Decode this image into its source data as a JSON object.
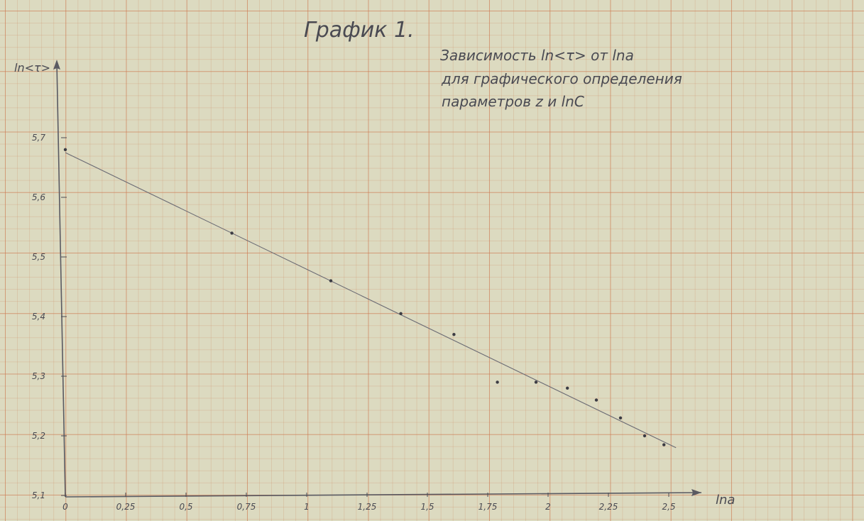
{
  "chart_data": {
    "type": "scatter",
    "title": "График 1.",
    "subtitle_lines": [
      "Зависимость ln<τ> от lna",
      "для графического определения",
      "параметров z и lnC"
    ],
    "xlabel": "lna",
    "ylabel": "ln<τ>",
    "xlim": [
      0,
      2.6
    ],
    "ylim": [
      5.1,
      5.8
    ],
    "x_ticks": [
      "0",
      "0,25",
      "0,5",
      "0,75",
      "1",
      "1,25",
      "1,5",
      "1,75",
      "2",
      "2,25",
      "2,5"
    ],
    "x_tick_values": [
      0,
      0.25,
      0.5,
      0.75,
      1,
      1.25,
      1.5,
      1.75,
      2,
      2.25,
      2.5
    ],
    "y_ticks": [
      "5,1",
      "5,2",
      "5,3",
      "5,4",
      "5,5",
      "5,6",
      "5,7"
    ],
    "y_tick_values": [
      5.1,
      5.2,
      5.3,
      5.4,
      5.5,
      5.6,
      5.7
    ],
    "grid": true,
    "points": {
      "x": [
        0,
        0.69,
        1.1,
        1.39,
        1.61,
        1.79,
        1.95,
        2.08,
        2.2,
        2.3,
        2.4,
        2.48
      ],
      "y": [
        5.68,
        5.54,
        5.46,
        5.405,
        5.37,
        5.29,
        5.29,
        5.28,
        5.26,
        5.23,
        5.2,
        5.185
      ]
    },
    "fit_line": {
      "x": [
        0,
        2.53
      ],
      "y": [
        5.675,
        5.18
      ]
    },
    "colors": {
      "ink": "#4a4a52",
      "axis": "#5a5a62",
      "fit": "#6b6b74"
    }
  }
}
